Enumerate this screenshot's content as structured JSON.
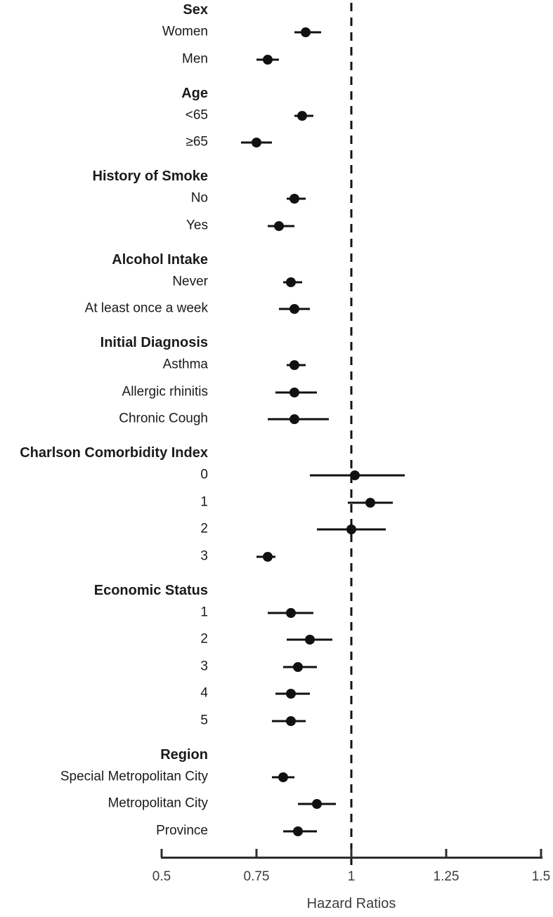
{
  "colors": {
    "marker": "#111111",
    "text": "#1a1a1a",
    "axis": "#2e2e2e",
    "tick_text": "#3c3c3c"
  },
  "chart_data": {
    "type": "scatter",
    "subtype": "forest-plot",
    "xlabel": "Hazard Ratios",
    "x_axis": {
      "min": 0.5,
      "max": 1.5,
      "ticks": [
        0.5,
        0.75,
        1,
        1.25,
        1.5
      ],
      "tick_labels": [
        "0.5",
        "0.75",
        "1",
        "1.25",
        "1.5"
      ],
      "reference_line": 1.0,
      "reference_line_style": "dashed"
    },
    "legend": "none",
    "grid": false,
    "groups": [
      {
        "label": "Sex",
        "items": [
          {
            "label": "Women",
            "hr": 0.88,
            "ci_low": 0.85,
            "ci_high": 0.92
          },
          {
            "label": "Men",
            "hr": 0.78,
            "ci_low": 0.75,
            "ci_high": 0.81
          }
        ]
      },
      {
        "label": "Age",
        "items": [
          {
            "label": "<65",
            "hr": 0.87,
            "ci_low": 0.85,
            "ci_high": 0.9
          },
          {
            "label": "≥65",
            "hr": 0.75,
            "ci_low": 0.71,
            "ci_high": 0.79
          }
        ]
      },
      {
        "label": "History of Smoke",
        "items": [
          {
            "label": "No",
            "hr": 0.85,
            "ci_low": 0.83,
            "ci_high": 0.88
          },
          {
            "label": "Yes",
            "hr": 0.81,
            "ci_low": 0.78,
            "ci_high": 0.85
          }
        ]
      },
      {
        "label": "Alcohol Intake",
        "items": [
          {
            "label": "Never",
            "hr": 0.84,
            "ci_low": 0.82,
            "ci_high": 0.87
          },
          {
            "label": "At least once a week",
            "hr": 0.85,
            "ci_low": 0.81,
            "ci_high": 0.89
          }
        ]
      },
      {
        "label": "Initial Diagnosis",
        "items": [
          {
            "label": "Asthma",
            "hr": 0.85,
            "ci_low": 0.83,
            "ci_high": 0.88
          },
          {
            "label": "Allergic rhinitis",
            "hr": 0.85,
            "ci_low": 0.8,
            "ci_high": 0.91
          },
          {
            "label": "Chronic Cough",
            "hr": 0.85,
            "ci_low": 0.78,
            "ci_high": 0.94
          }
        ]
      },
      {
        "label": "Charlson Comorbidity Index",
        "items": [
          {
            "label": "0",
            "hr": 1.01,
            "ci_low": 0.89,
            "ci_high": 1.14
          },
          {
            "label": "1",
            "hr": 1.05,
            "ci_low": 0.99,
            "ci_high": 1.11
          },
          {
            "label": "2",
            "hr": 1.0,
            "ci_low": 0.91,
            "ci_high": 1.09
          },
          {
            "label": "3",
            "hr": 0.78,
            "ci_low": 0.75,
            "ci_high": 0.8
          }
        ]
      },
      {
        "label": "Economic Status",
        "items": [
          {
            "label": "1",
            "hr": 0.84,
            "ci_low": 0.78,
            "ci_high": 0.9
          },
          {
            "label": "2",
            "hr": 0.89,
            "ci_low": 0.83,
            "ci_high": 0.95
          },
          {
            "label": "3",
            "hr": 0.86,
            "ci_low": 0.82,
            "ci_high": 0.91
          },
          {
            "label": "4",
            "hr": 0.84,
            "ci_low": 0.8,
            "ci_high": 0.89
          },
          {
            "label": "5",
            "hr": 0.84,
            "ci_low": 0.79,
            "ci_high": 0.88
          }
        ]
      },
      {
        "label": "Region",
        "items": [
          {
            "label": "Special Metropolitan City",
            "hr": 0.82,
            "ci_low": 0.79,
            "ci_high": 0.85
          },
          {
            "label": "Metropolitan City",
            "hr": 0.91,
            "ci_low": 0.86,
            "ci_high": 0.96
          },
          {
            "label": "Province",
            "hr": 0.86,
            "ci_low": 0.82,
            "ci_high": 0.91
          }
        ]
      }
    ]
  }
}
